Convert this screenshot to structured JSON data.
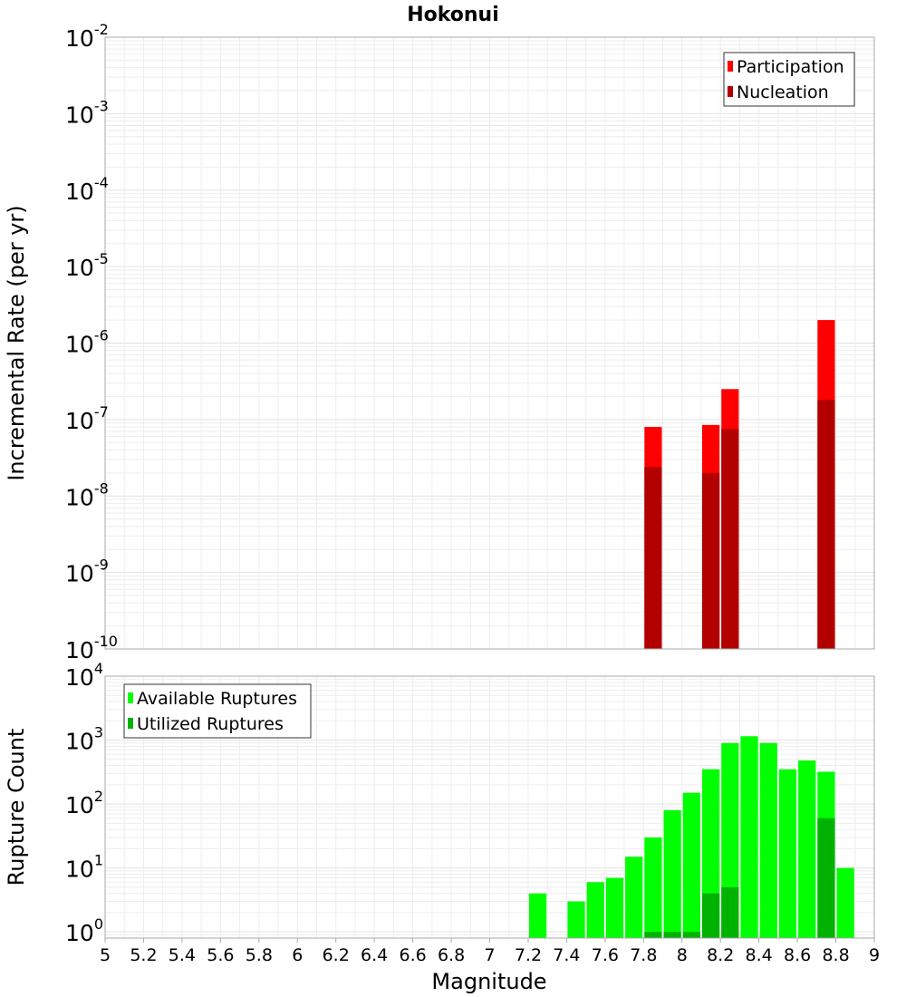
{
  "chart_data": {
    "title": "Hokonui",
    "xlabel": "Magnitude",
    "xlim": [
      5,
      9
    ],
    "xticks": [
      "5",
      "5.2",
      "5.4",
      "5.6",
      "5.8",
      "6",
      "6.2",
      "6.4",
      "6.6",
      "6.8",
      "7",
      "7.2",
      "7.4",
      "7.6",
      "7.8",
      "8",
      "8.2",
      "8.4",
      "8.6",
      "8.8",
      "9"
    ],
    "bin_width": 0.1,
    "panels": [
      {
        "type": "bar",
        "ylabel": "Incremental Rate (per yr)",
        "yscale": "log",
        "ylim": [
          1e-10,
          0.01
        ],
        "ytick_exponents": [
          "-10",
          "-9",
          "-8",
          "-7",
          "-6",
          "-5",
          "-4",
          "-3",
          "-2"
        ],
        "grid": true,
        "legend_position": "top-right",
        "legend": [
          "Participation",
          "Nucleation"
        ],
        "series": [
          {
            "name": "Participation",
            "color": "#ff0000",
            "x": [
              7.85,
              8.15,
              8.25,
              8.75
            ],
            "values": [
              8e-08,
              8.5e-08,
              2.5e-07,
              2e-06
            ]
          },
          {
            "name": "Nucleation",
            "color": "#b20000",
            "x": [
              7.85,
              8.15,
              8.25,
              8.75
            ],
            "values": [
              2.4e-08,
              2e-08,
              7.5e-08,
              1.8e-07
            ]
          }
        ]
      },
      {
        "type": "bar",
        "ylabel": "Rupture Count",
        "yscale": "log",
        "ylim": [
          0.8,
          10000
        ],
        "ytick_exponents": [
          "0",
          "1",
          "2",
          "3",
          "4"
        ],
        "grid": true,
        "legend_position": "top-left",
        "legend": [
          "Available Ruptures",
          "Utilized Ruptures"
        ],
        "series": [
          {
            "name": "Available Ruptures",
            "color": "#00ff00",
            "x": [
              7.25,
              7.45,
              7.55,
              7.65,
              7.75,
              7.85,
              7.95,
              8.05,
              8.15,
              8.25,
              8.35,
              8.45,
              8.55,
              8.65,
              8.75,
              8.85
            ],
            "values": [
              4,
              3,
              6,
              7,
              15,
              30,
              80,
              150,
              350,
              900,
              1150,
              900,
              350,
              480,
              320,
              10
            ]
          },
          {
            "name": "Utilized Ruptures",
            "color": "#00b200",
            "x": [
              7.85,
              7.95,
              8.05,
              8.15,
              8.25,
              8.75
            ],
            "values": [
              1,
              1,
              1,
              4,
              5,
              60
            ]
          }
        ]
      }
    ]
  }
}
